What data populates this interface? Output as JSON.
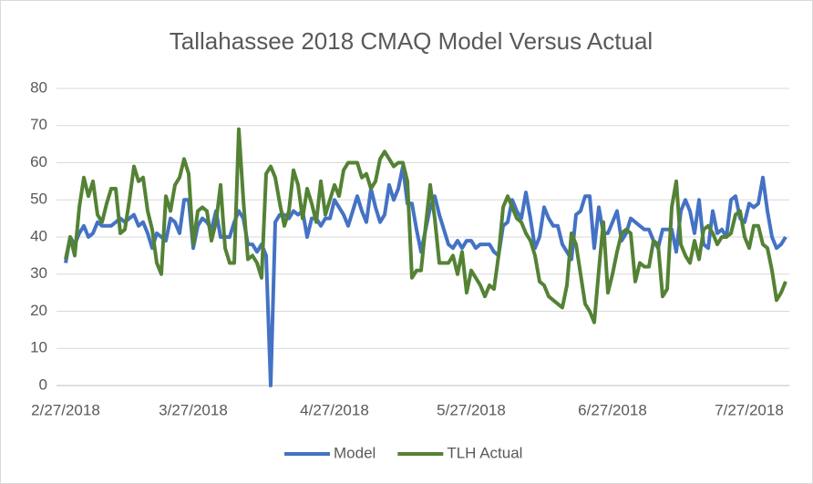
{
  "chart_data": {
    "type": "line",
    "title": "Tallahassee 2018 CMAQ Model Versus Actual",
    "x": [
      "2/27/2018",
      "2/28/2018",
      "3/1/2018",
      "3/2/2018",
      "3/3/2018",
      "3/4/2018",
      "3/5/2018",
      "3/6/2018",
      "3/7/2018",
      "3/8/2018",
      "3/9/2018",
      "3/10/2018",
      "3/11/2018",
      "3/12/2018",
      "3/13/2018",
      "3/14/2018",
      "3/15/2018",
      "3/16/2018",
      "3/17/2018",
      "3/18/2018",
      "3/19/2018",
      "3/20/2018",
      "3/21/2018",
      "3/22/2018",
      "3/23/2018",
      "3/24/2018",
      "3/25/2018",
      "3/26/2018",
      "3/27/2018",
      "3/28/2018",
      "3/29/2018",
      "3/30/2018",
      "3/31/2018",
      "4/1/2018",
      "4/2/2018",
      "4/3/2018",
      "4/4/2018",
      "4/5/2018",
      "4/6/2018",
      "4/7/2018",
      "4/8/2018",
      "4/9/2018",
      "4/10/2018",
      "4/11/2018",
      "4/12/2018",
      "4/13/2018",
      "4/14/2018",
      "4/15/2018",
      "4/16/2018",
      "4/17/2018",
      "4/18/2018",
      "4/19/2018",
      "4/20/2018",
      "4/21/2018",
      "4/22/2018",
      "4/23/2018",
      "4/24/2018",
      "4/25/2018",
      "4/26/2018",
      "4/27/2018",
      "4/28/2018",
      "4/29/2018",
      "4/30/2018",
      "5/1/2018",
      "5/2/2018",
      "5/3/2018",
      "5/4/2018",
      "5/5/2018",
      "5/6/2018",
      "5/7/2018",
      "5/8/2018",
      "5/9/2018",
      "5/10/2018",
      "5/11/2018",
      "5/12/2018",
      "5/13/2018",
      "5/14/2018",
      "5/15/2018",
      "5/16/2018",
      "5/17/2018",
      "5/18/2018",
      "5/19/2018",
      "5/20/2018",
      "5/21/2018",
      "5/22/2018",
      "5/23/2018",
      "5/24/2018",
      "5/25/2018",
      "5/26/2018",
      "5/27/2018",
      "5/28/2018",
      "5/29/2018",
      "5/30/2018",
      "5/31/2018",
      "6/1/2018",
      "6/2/2018",
      "6/3/2018",
      "6/4/2018",
      "6/5/2018",
      "6/6/2018",
      "6/7/2018",
      "6/8/2018",
      "6/9/2018",
      "6/10/2018",
      "6/11/2018",
      "6/12/2018",
      "6/13/2018",
      "6/14/2018",
      "6/15/2018",
      "6/16/2018",
      "6/17/2018",
      "6/18/2018",
      "6/19/2018",
      "6/20/2018",
      "6/21/2018",
      "6/22/2018",
      "6/23/2018",
      "6/24/2018",
      "6/25/2018",
      "6/26/2018",
      "6/27/2018",
      "6/28/2018",
      "6/29/2018",
      "6/30/2018",
      "7/1/2018",
      "7/2/2018",
      "7/3/2018",
      "7/4/2018",
      "7/5/2018",
      "7/6/2018",
      "7/7/2018",
      "7/8/2018",
      "7/9/2018",
      "7/10/2018",
      "7/11/2018",
      "7/12/2018",
      "7/13/2018",
      "7/14/2018",
      "7/15/2018",
      "7/16/2018",
      "7/17/2018",
      "7/18/2018",
      "7/19/2018",
      "7/20/2018",
      "7/21/2018",
      "7/22/2018",
      "7/23/2018",
      "7/24/2018",
      "7/25/2018",
      "7/26/2018",
      "7/27/2018",
      "7/28/2018",
      "7/29/2018",
      "7/30/2018",
      "7/31/2018",
      "8/1/2018",
      "8/2/2018",
      "8/3/2018",
      "8/4/2018"
    ],
    "series": [
      {
        "name": "Model",
        "color": "#4472c4",
        "values": [
          33,
          40,
          38,
          41,
          43,
          40,
          41,
          44,
          43,
          43,
          43,
          44,
          45,
          44,
          45,
          46,
          43,
          44,
          41,
          37,
          41,
          40,
          39,
          45,
          44,
          41,
          50,
          50,
          37,
          43,
          45,
          44,
          42,
          47,
          40,
          40,
          40,
          44,
          47,
          45,
          38,
          38,
          36,
          38,
          35,
          0,
          44,
          46,
          46,
          45,
          47,
          46,
          47,
          40,
          45,
          45,
          43,
          45,
          45,
          50,
          48,
          46,
          43,
          47,
          51,
          47,
          44,
          53,
          48,
          44,
          46,
          54,
          50,
          53,
          59,
          49,
          49,
          42,
          36,
          42,
          48,
          51,
          46,
          42,
          38,
          37,
          39,
          37,
          39,
          39,
          37,
          38,
          38,
          38,
          36,
          35,
          43,
          44,
          50,
          47,
          45,
          52,
          45,
          37,
          40,
          48,
          45,
          43,
          43,
          38,
          36,
          34,
          46,
          47,
          51,
          51,
          37,
          48,
          41,
          41,
          44,
          47,
          39,
          41,
          45,
          44,
          43,
          42,
          42,
          39,
          37,
          42,
          42,
          42,
          36,
          47,
          50,
          47,
          41,
          50,
          38,
          37,
          47,
          41,
          42,
          40,
          50,
          51,
          45,
          44,
          49,
          48,
          49,
          56,
          47,
          40,
          37,
          38,
          40
        ]
      },
      {
        "name": "TLH Actual",
        "color": "#548235",
        "values": [
          34,
          40,
          35,
          48,
          56,
          51,
          55,
          46,
          44,
          49,
          53,
          53,
          41,
          42,
          50,
          59,
          55,
          56,
          47,
          42,
          33,
          30,
          51,
          47,
          54,
          56,
          61,
          57,
          38,
          47,
          48,
          47,
          39,
          44,
          54,
          37,
          33,
          33,
          69,
          50,
          34,
          35,
          33,
          29,
          57,
          59,
          56,
          49,
          43,
          47,
          58,
          54,
          45,
          53,
          49,
          44,
          55,
          46,
          50,
          54,
          51,
          58,
          60,
          60,
          60,
          56,
          57,
          53,
          55,
          61,
          63,
          61,
          59,
          60,
          60,
          55,
          29,
          31,
          31,
          43,
          54,
          45,
          33,
          33,
          33,
          35,
          30,
          36,
          25,
          31,
          29,
          27,
          24,
          27,
          26,
          35,
          48,
          51,
          48,
          45,
          44,
          41,
          39,
          35,
          28,
          27,
          24,
          23,
          22,
          21,
          27,
          41,
          38,
          30,
          22,
          20,
          17,
          31,
          44,
          25,
          30,
          36,
          41,
          42,
          41,
          28,
          33,
          32,
          32,
          39,
          38,
          24,
          26,
          48,
          55,
          38,
          35,
          33,
          39,
          34,
          42,
          43,
          41,
          38,
          40,
          40,
          41,
          46,
          47,
          40,
          37,
          43,
          43,
          38,
          37,
          31,
          23,
          25,
          28
        ]
      }
    ],
    "xlim": [
      "2/27/2018",
      "8/4/2018"
    ],
    "xticks": [
      "2/27/2018",
      "3/27/2018",
      "4/27/2018",
      "5/27/2018",
      "6/27/2018",
      "7/27/2018"
    ],
    "ylim": [
      0,
      80
    ],
    "yticks": [
      0,
      10,
      20,
      30,
      40,
      50,
      60,
      70,
      80
    ],
    "grid": true,
    "legend": "bottom"
  }
}
